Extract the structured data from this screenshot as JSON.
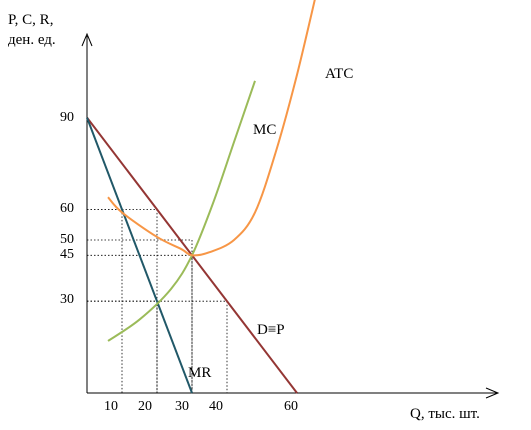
{
  "chart_data": {
    "type": "line",
    "ylabel_line1": "P, C, R,",
    "ylabel_line2": "ден. ед.",
    "xlabel": "Q, тыс. шт.",
    "x_ticks": [
      "10",
      "20",
      "30",
      "40",
      "60"
    ],
    "y_ticks": [
      "90",
      "60",
      "50",
      "45",
      "30"
    ],
    "xlim": [
      0,
      117
    ],
    "ylim": [
      0,
      110
    ],
    "colors": {
      "demand": "#943634",
      "mr": "#215868",
      "mc": "#9BBB59",
      "atc": "#F79646",
      "axis": "#000000",
      "guide": "#000000"
    },
    "series": [
      {
        "name": "D≡P",
        "key": "demand",
        "x": [
          0,
          60
        ],
        "y": [
          90,
          0
        ]
      },
      {
        "name": "MR",
        "key": "mr",
        "x": [
          0,
          30
        ],
        "y": [
          90,
          0
        ]
      },
      {
        "name": "MC",
        "key": "mc",
        "x": [
          6,
          15,
          24,
          30,
          36,
          42,
          48
        ],
        "y": [
          17,
          24,
          34,
          45,
          62,
          82,
          102
        ]
      },
      {
        "name": "ATC",
        "key": "atc",
        "x": [
          6,
          10,
          20,
          27,
          30,
          35,
          42,
          48,
          54,
          60,
          66
        ],
        "y": [
          64,
          59,
          51,
          47,
          45,
          46,
          50,
          59,
          79,
          104,
          133
        ]
      }
    ],
    "guides": [
      {
        "x": 10,
        "y": 60
      },
      {
        "x": 20,
        "y": 60
      },
      {
        "x": 30,
        "y": 45
      },
      {
        "x": 20,
        "y": 30
      },
      {
        "x": 40,
        "y": 30
      },
      {
        "x": 30,
        "y": 50
      }
    ]
  }
}
